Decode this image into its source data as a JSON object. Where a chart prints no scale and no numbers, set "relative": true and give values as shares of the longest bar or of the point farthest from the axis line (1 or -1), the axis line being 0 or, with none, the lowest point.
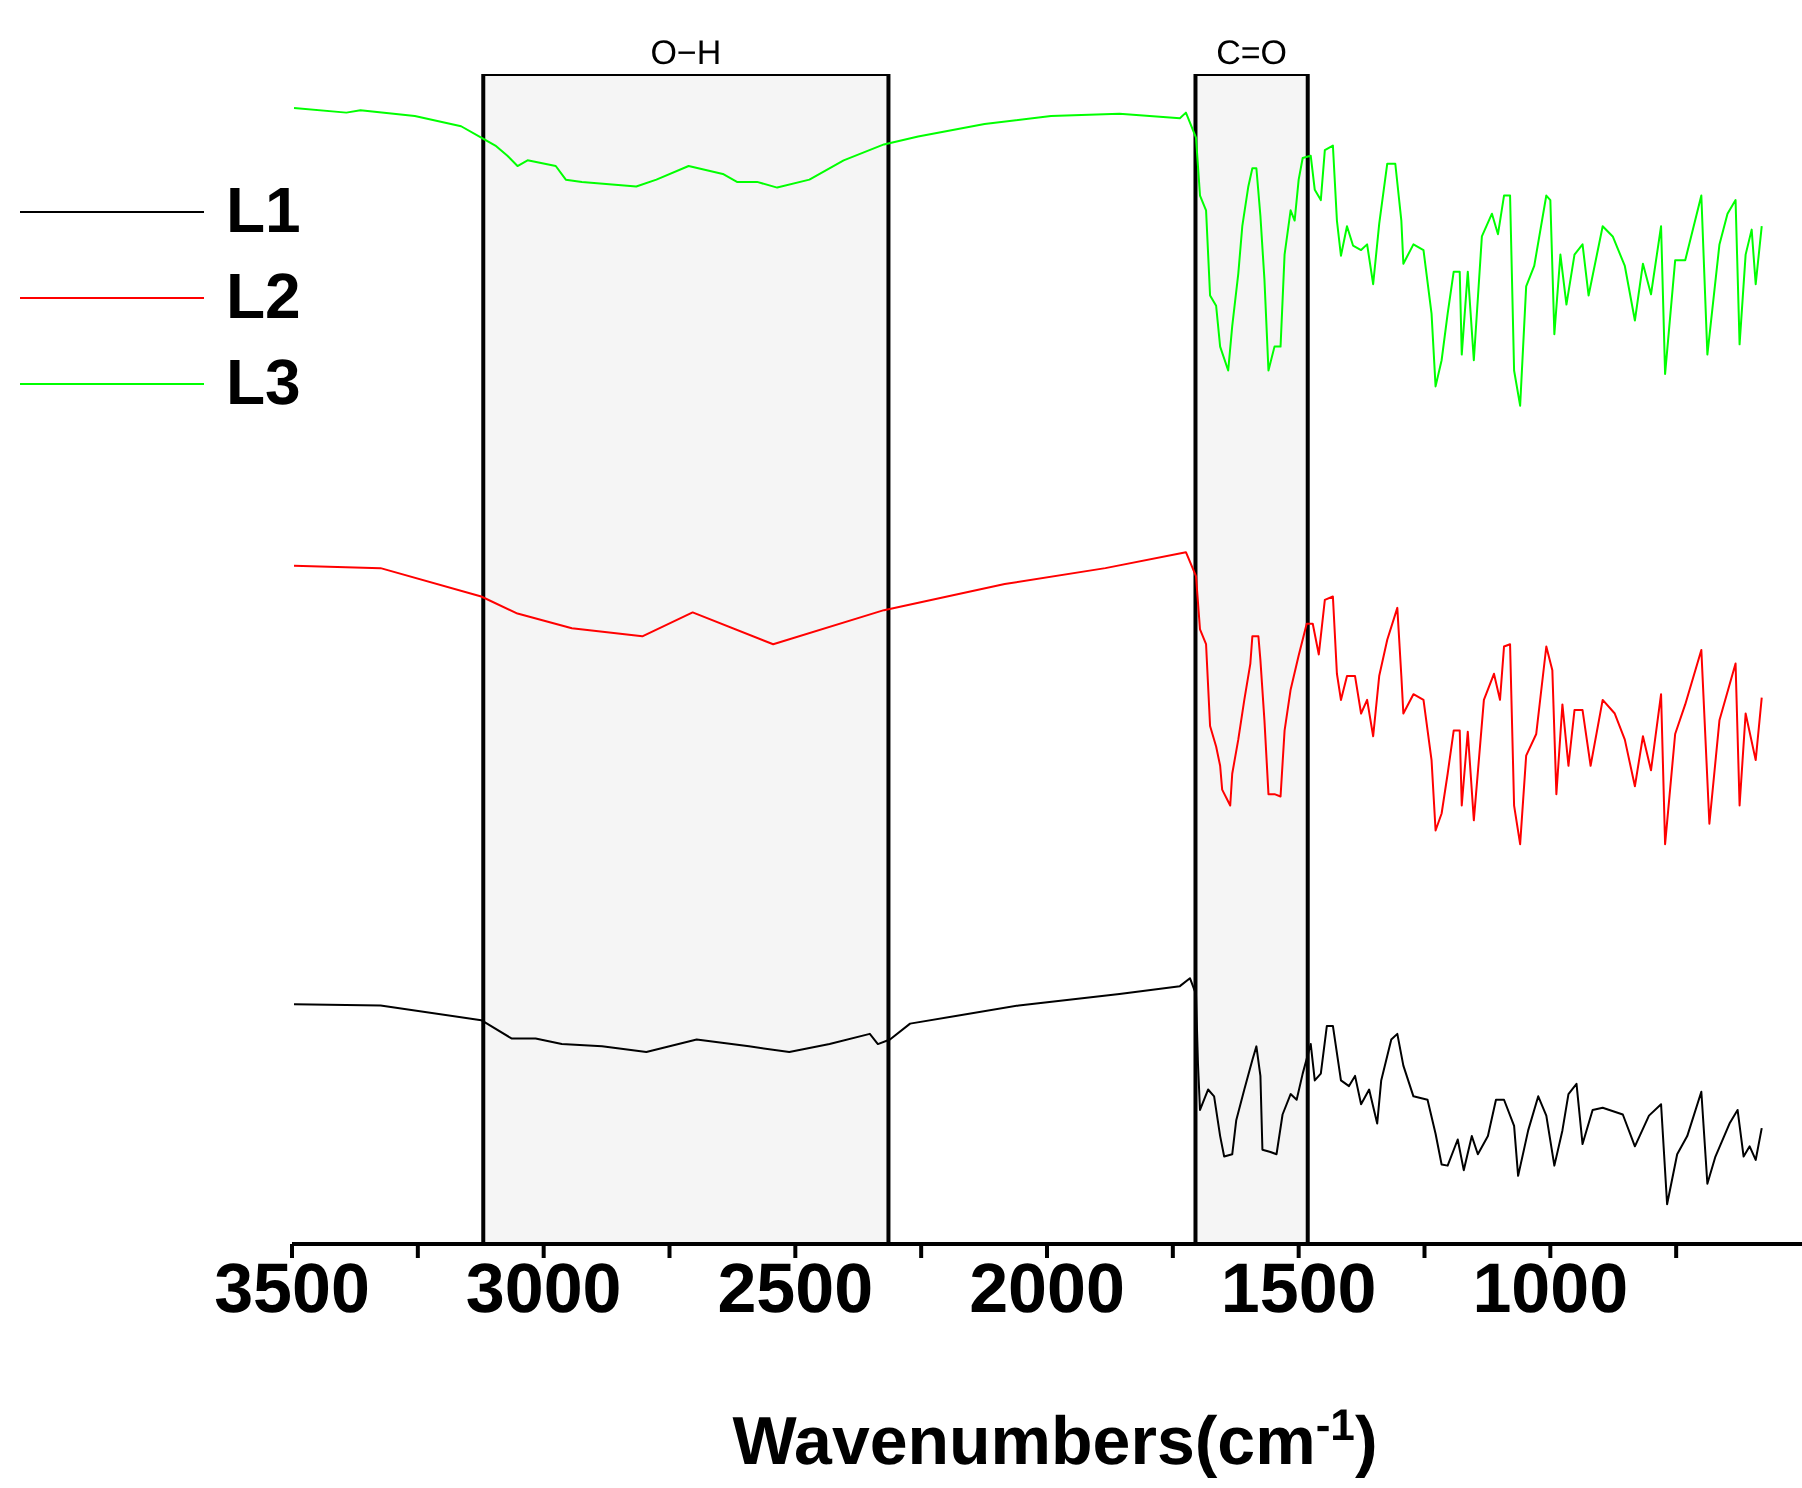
{
  "chart_data": {
    "type": "line",
    "relative": true,
    "xlabel": "Wavenumbers(cm$^{-1}$)",
    "xlim": [
      3500,
      500
    ],
    "xticks": [
      3500,
      {
        "value": 3250,
        "label": null
      },
      3000,
      {
        "value": 2750,
        "label": null
      },
      2500,
      {
        "value": 2250,
        "label": null
      },
      2000,
      {
        "value": 1750,
        "label": null
      },
      1500,
      {
        "value": 1250,
        "label": null
      },
      1000,
      {
        "value": 750,
        "label": null
      }
    ],
    "grid": false,
    "legend": "top left",
    "marker": "none",
    "line_style": "solid",
    "bands": [
      {
        "axis": "x",
        "from": 3120,
        "to": 2315,
        "label": "O−H",
        "color": "#000000"
      },
      {
        "axis": "x",
        "from": 1705,
        "to": 1482,
        "label": "C=O",
        "color": "#000000"
      }
    ],
    "series": [
      {
        "name": "L1",
        "color": "#000000",
        "x": [
          3496,
          3324,
          3124,
          3064,
          3016,
          2964,
          2884,
          2796,
          2696,
          2592,
          2512,
          2432,
          2352,
          2336,
          2312,
          2272,
          2056,
          1856,
          1736,
          1716,
          1704,
          1700,
          1696,
          1680,
          1668,
          1656,
          1648,
          1632,
          1624,
          1608,
          1592,
          1584,
          1576,
          1572,
          1556,
          1544,
          1532,
          1516,
          1504,
          1492,
          1476,
          1468,
          1456,
          1444,
          1432,
          1416,
          1400,
          1388,
          1376,
          1360,
          1344,
          1336,
          1316,
          1304,
          1292,
          1272,
          1244,
          1228,
          1216,
          1204,
          1184,
          1172,
          1156,
          1144,
          1124,
          1108,
          1092,
          1072,
          1064,
          1044,
          1024,
          1008,
          992,
          976,
          964,
          948,
          936,
          916,
          896,
          856,
          832,
          804,
          780,
          768,
          748,
          728,
          700,
          688,
          672,
          644,
          628,
          616,
          604,
          592,
          580
        ],
        "values": [
          0.211,
          0.21,
          0.197,
          0.181,
          0.181,
          0.176,
          0.174,
          0.169,
          0.18,
          0.174,
          0.169,
          0.176,
          0.185,
          0.176,
          0.18,
          0.194,
          0.21,
          0.22,
          0.227,
          0.234,
          0.22,
          0.158,
          0.118,
          0.136,
          0.13,
          0.095,
          0.077,
          0.079,
          0.109,
          0.136,
          0.162,
          0.174,
          0.148,
          0.083,
          0.081,
          0.079,
          0.114,
          0.132,
          0.127,
          0.15,
          0.176,
          0.144,
          0.15,
          0.192,
          0.192,
          0.144,
          0.139,
          0.148,
          0.123,
          0.136,
          0.106,
          0.144,
          0.18,
          0.185,
          0.157,
          0.13,
          0.127,
          0.097,
          0.07,
          0.069,
          0.092,
          0.065,
          0.095,
          0.079,
          0.095,
          0.127,
          0.127,
          0.104,
          0.06,
          0.1,
          0.13,
          0.113,
          0.069,
          0.1,
          0.132,
          0.141,
          0.088,
          0.118,
          0.12,
          0.114,
          0.086,
          0.113,
          0.123,
          0.035,
          0.079,
          0.095,
          0.134,
          0.053,
          0.077,
          0.106,
          0.118,
          0.077,
          0.086,
          0.074,
          0.102
        ]
      },
      {
        "name": "L2",
        "color": "#ff0000",
        "x": [
          3496,
          3324,
          3124,
          3052,
          2944,
          2804,
          2704,
          2544,
          2324,
          2084,
          1884,
          1724,
          1704,
          1696,
          1684,
          1676,
          1664,
          1656,
          1652,
          1636,
          1632,
          1620,
          1608,
          1596,
          1592,
          1580,
          1576,
          1568,
          1560,
          1548,
          1536,
          1528,
          1516,
          1500,
          1484,
          1472,
          1460,
          1448,
          1432,
          1424,
          1416,
          1404,
          1388,
          1376,
          1364,
          1352,
          1340,
          1324,
          1304,
          1296,
          1292,
          1272,
          1252,
          1236,
          1228,
          1216,
          1204,
          1192,
          1180,
          1176,
          1164,
          1152,
          1132,
          1112,
          1100,
          1092,
          1080,
          1072,
          1060,
          1048,
          1028,
          1008,
          996,
          988,
          976,
          964,
          952,
          936,
          920,
          896,
          872,
          852,
          832,
          816,
          800,
          780,
          772,
          752,
          732,
          700,
          684,
          664,
          632,
          624,
          612,
          592,
          580
        ],
        "values": [
          0.597,
          0.595,
          0.57,
          0.555,
          0.542,
          0.535,
          0.556,
          0.528,
          0.558,
          0.581,
          0.595,
          0.609,
          0.588,
          0.541,
          0.528,
          0.456,
          0.438,
          0.421,
          0.4,
          0.386,
          0.414,
          0.444,
          0.479,
          0.511,
          0.535,
          0.535,
          0.514,
          0.461,
          0.396,
          0.396,
          0.394,
          0.452,
          0.488,
          0.518,
          0.546,
          0.546,
          0.519,
          0.567,
          0.57,
          0.502,
          0.479,
          0.5,
          0.5,
          0.467,
          0.479,
          0.447,
          0.5,
          0.532,
          0.56,
          0.5,
          0.467,
          0.484,
          0.479,
          0.426,
          0.364,
          0.379,
          0.414,
          0.452,
          0.452,
          0.386,
          0.451,
          0.373,
          0.479,
          0.502,
          0.479,
          0.526,
          0.528,
          0.386,
          0.352,
          0.43,
          0.449,
          0.526,
          0.505,
          0.396,
          0.475,
          0.421,
          0.47,
          0.47,
          0.421,
          0.479,
          0.467,
          0.444,
          0.403,
          0.447,
          0.417,
          0.484,
          0.352,
          0.449,
          0.475,
          0.523,
          0.37,
          0.461,
          0.511,
          0.386,
          0.467,
          0.426,
          0.481
        ]
      },
      {
        "name": "L3",
        "color": "#00ff00",
        "x": [
          3496,
          3392,
          3364,
          3256,
          3164,
          3124,
          3096,
          3072,
          3052,
          3032,
          2976,
          2956,
          2924,
          2816,
          2776,
          2712,
          2644,
          2616,
          2576,
          2536,
          2472,
          2404,
          2324,
          2256,
          2124,
          1992,
          1856,
          1736,
          1724,
          1704,
          1696,
          1684,
          1676,
          1664,
          1656,
          1640,
          1632,
          1620,
          1612,
          1600,
          1592,
          1584,
          1576,
          1568,
          1560,
          1548,
          1536,
          1528,
          1516,
          1508,
          1500,
          1492,
          1476,
          1468,
          1456,
          1448,
          1432,
          1424,
          1416,
          1404,
          1392,
          1376,
          1364,
          1352,
          1340,
          1324,
          1308,
          1296,
          1292,
          1272,
          1252,
          1236,
          1228,
          1216,
          1204,
          1192,
          1180,
          1176,
          1164,
          1152,
          1136,
          1116,
          1104,
          1092,
          1080,
          1072,
          1060,
          1048,
          1032,
          1008,
          1000,
          992,
          980,
          968,
          952,
          936,
          924,
          896,
          876,
          852,
          832,
          816,
          800,
          780,
          772,
          752,
          732,
          700,
          688,
          664,
          648,
          632,
          624,
          612,
          600,
          592,
          580
        ],
        "values": [
          1.0,
          0.996,
          0.998,
          0.993,
          0.984,
          0.974,
          0.967,
          0.958,
          0.949,
          0.954,
          0.949,
          0.937,
          0.935,
          0.931,
          0.937,
          0.949,
          0.942,
          0.935,
          0.935,
          0.93,
          0.937,
          0.954,
          0.968,
          0.975,
          0.986,
          0.993,
          0.995,
          0.991,
          0.996,
          0.974,
          0.923,
          0.91,
          0.835,
          0.826,
          0.79,
          0.769,
          0.808,
          0.854,
          0.896,
          0.931,
          0.947,
          0.947,
          0.905,
          0.849,
          0.769,
          0.79,
          0.79,
          0.871,
          0.91,
          0.901,
          0.937,
          0.956,
          0.958,
          0.928,
          0.919,
          0.963,
          0.967,
          0.901,
          0.87,
          0.896,
          0.879,
          0.875,
          0.88,
          0.845,
          0.898,
          0.951,
          0.951,
          0.901,
          0.863,
          0.88,
          0.875,
          0.819,
          0.755,
          0.778,
          0.819,
          0.856,
          0.856,
          0.783,
          0.856,
          0.778,
          0.887,
          0.907,
          0.889,
          0.923,
          0.923,
          0.769,
          0.738,
          0.843,
          0.861,
          0.923,
          0.919,
          0.801,
          0.871,
          0.827,
          0.871,
          0.88,
          0.835,
          0.896,
          0.887,
          0.861,
          0.813,
          0.863,
          0.836,
          0.896,
          0.766,
          0.866,
          0.866,
          0.923,
          0.783,
          0.88,
          0.907,
          0.919,
          0.792,
          0.871,
          0.893,
          0.845,
          0.896
        ]
      }
    ]
  }
}
